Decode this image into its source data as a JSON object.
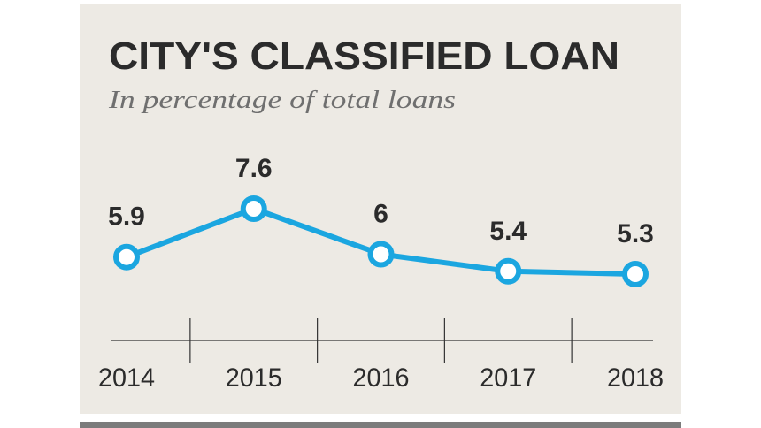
{
  "chart_data": {
    "type": "line",
    "title": "CITY'S CLASSIFIED LOAN",
    "subtitle": "In percentage of total loans",
    "categories": [
      "2014",
      "2015",
      "2016",
      "2017",
      "2018"
    ],
    "values": [
      5.9,
      7.6,
      6,
      5.4,
      5.3
    ],
    "color": "#1ba6e0"
  }
}
